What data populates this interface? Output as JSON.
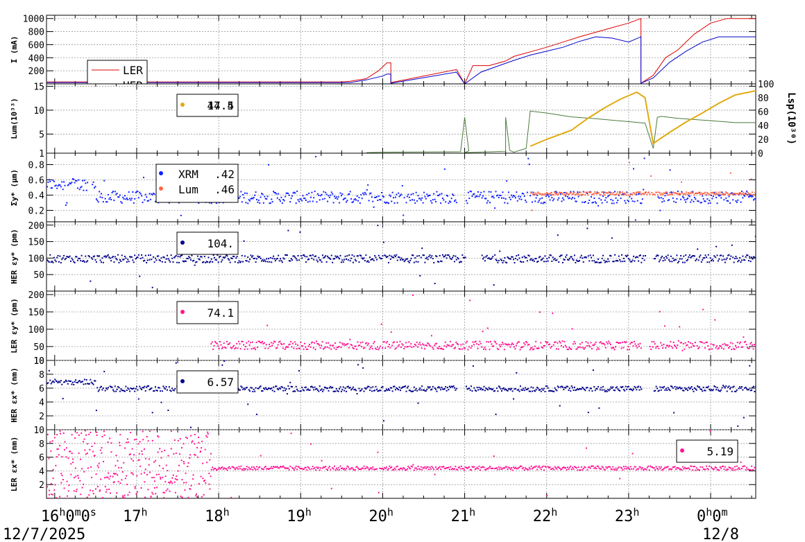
{
  "chart_data": {
    "type": "line",
    "x_axis": {
      "ticks": [
        {
          "main": "16",
          "sup1": "h",
          "mid": "0",
          "sup2": "m",
          "tail": "0",
          "sup3": "s",
          "date": "12/7/2025"
        },
        {
          "main": "17",
          "sup1": "h"
        },
        {
          "main": "18",
          "sup1": "h"
        },
        {
          "main": "19",
          "sup1": "h"
        },
        {
          "main": "20",
          "sup1": "h"
        },
        {
          "main": "21",
          "sup1": "h"
        },
        {
          "main": "22",
          "sup1": "h"
        },
        {
          "main": "23",
          "sup1": "h"
        },
        {
          "main": "0",
          "sup1": "h",
          "mid": "0",
          "sup2": "m",
          "date": "12/8"
        }
      ],
      "hour_positions": [
        0,
        1,
        2,
        3,
        4,
        5,
        6,
        7,
        8
      ],
      "range": [
        -0.1,
        8.55
      ]
    },
    "panels": [
      {
        "id": "current",
        "ylabel": "I (mA)",
        "ylim": [
          0,
          1050
        ],
        "yticks": [
          "1000",
          "800",
          "600",
          "400",
          "200"
        ],
        "ytick_values": [
          1000,
          800,
          600,
          400,
          200
        ],
        "series": [
          {
            "name": "LER",
            "color": "#dd0000",
            "kind": "line",
            "x": [
              -0.1,
              3.5,
              3.6,
              3.8,
              3.95,
              4.05,
              4.1,
              4.1,
              4.9,
              5.0,
              5.0,
              5.1,
              5.3,
              5.5,
              5.6,
              5.8,
              6.0,
              6.2,
              6.4,
              6.6,
              6.8,
              7.0,
              7.15,
              7.15,
              7.3,
              7.45,
              7.6,
              7.8,
              8.0,
              8.2,
              8.55
            ],
            "y": [
              30,
              30,
              40,
              80,
              200,
              320,
              320,
              20,
              220,
              0,
              0,
              280,
              280,
              350,
              420,
              490,
              560,
              640,
              720,
              790,
              860,
              930,
              1000,
              10,
              130,
              400,
              520,
              760,
              930,
              1000,
              1000
            ]
          },
          {
            "name": "HER",
            "color": "#0000cc",
            "kind": "line",
            "x": [
              -0.1,
              3.6,
              3.8,
              4.0,
              4.05,
              4.1,
              4.1,
              4.9,
              5.0,
              5.0,
              5.2,
              5.4,
              5.6,
              5.8,
              6.0,
              6.2,
              6.4,
              6.6,
              6.8,
              7.0,
              7.15,
              7.15,
              7.3,
              7.5,
              7.7,
              7.9,
              8.1,
              8.3,
              8.55
            ],
            "y": [
              20,
              20,
              60,
              120,
              150,
              150,
              10,
              180,
              0,
              0,
              180,
              270,
              360,
              440,
              500,
              560,
              650,
              720,
              700,
              640,
              720,
              10,
              90,
              330,
              500,
              640,
              720,
              720,
              720
            ]
          }
        ],
        "legend": [
          {
            "label": "LER",
            "color": "#dd0000"
          },
          {
            "label": "HER",
            "color": "#0000cc"
          }
        ]
      },
      {
        "id": "luminosity",
        "ylabel": "Lum(10³³)",
        "ylim": [
          1,
          15.5
        ],
        "yticks": [
          "15",
          "10",
          "5",
          "1"
        ],
        "ytick_values": [
          15,
          10,
          5,
          1
        ],
        "right_axis": {
          "label": "Lsp(10³⁰)",
          "ticks": [
            "100",
            "80",
            "60",
            "40",
            "20",
            "0"
          ],
          "tick_values": [
            100,
            80,
            60,
            40,
            20,
            0
          ],
          "range": [
            0,
            100
          ]
        },
        "series": [
          {
            "name": "Lum",
            "color": "#4a7a3a",
            "kind": "line",
            "x": [
              3.8,
              4.0,
              4.95,
              5.0,
              5.05,
              5.0,
              5.5,
              5.5,
              5.55,
              5.6,
              5.75,
              5.8,
              6.0,
              6.3,
              6.6,
              7.0,
              7.2,
              7.3,
              7.35,
              7.4,
              7.6,
              8.0,
              8.3,
              8.55
            ],
            "y": [
              1.1,
              1.2,
              1.3,
              8.5,
              1.5,
              1.1,
              1.4,
              8.5,
              1.6,
              1.2,
              2,
              9.8,
              9.4,
              8.6,
              8.2,
              7.6,
              7.3,
              2,
              8.5,
              8.7,
              8.3,
              7.8,
              7.4,
              7.4
            ]
          },
          {
            "name": "Lsp",
            "color": "#e0aa10",
            "kind": "line",
            "axis": "right",
            "x": [
              5.8,
              6.0,
              6.3,
              6.5,
              6.7,
              6.9,
              7.1,
              7.2,
              7.3,
              7.5,
              7.7,
              7.9,
              8.1,
              8.3,
              8.55
            ],
            "y": [
              10,
              20,
              33,
              50,
              65,
              78,
              88,
              80,
              14,
              30,
              45,
              58,
              72,
              84,
              90
            ]
          }
        ],
        "legend": [
          {
            "label": "17.5",
            "color": "#e0aa10"
          }
        ],
        "legend_overlap": "44.4"
      },
      {
        "id": "sigma",
        "ylabel": "Σy* (μm)",
        "ylim": [
          0.05,
          0.95
        ],
        "yticks": [
          "0.8",
          "0.6",
          "0.4",
          "0.2"
        ],
        "ytick_values": [
          0.8,
          0.6,
          0.4,
          0.2
        ],
        "series": [
          {
            "name": "XRM",
            "color": "#1020ff",
            "kind": "scatter",
            "base": 0.38,
            "noise": 0.08,
            "breaks": [
              [
                0.4,
                0.45
              ],
              [
                4.9,
                5.0
              ],
              [
                7.2,
                7.35
              ]
            ],
            "start_level": 0.55
          },
          {
            "name": "Lum",
            "color": "#ff6644",
            "kind": "scatter",
            "base": 0.43,
            "noise": 0.02,
            "start": 5.8
          }
        ],
        "legend": [
          {
            "label": "XRM",
            "value": ".42",
            "color": "#1020ff"
          },
          {
            "label": "Lum",
            "value": ".46",
            "color": "#ff6644"
          }
        ]
      },
      {
        "id": "her_ey",
        "ylabel": "HER εy* (pm)",
        "ylim": [
          0,
          210
        ],
        "yticks": [
          "200",
          "150",
          "100",
          "50"
        ],
        "ytick_values": [
          200,
          150,
          100,
          50
        ],
        "series": [
          {
            "name": "HER εy",
            "color": "#00008a",
            "kind": "scatter",
            "base": 100,
            "noise": 12,
            "breaks": [
              [
                5.0,
                5.2
              ],
              [
                7.2,
                7.3
              ]
            ]
          }
        ],
        "legend": [
          {
            "label": "104.",
            "color": "#00008a"
          }
        ]
      },
      {
        "id": "ler_ey",
        "ylabel": "LER εy* (pm)",
        "ylim": [
          10,
          210
        ],
        "yticks": [
          "200",
          "150",
          "100",
          "50",
          "10"
        ],
        "ytick_values": [
          200,
          150,
          100,
          50,
          10
        ],
        "series": [
          {
            "name": "LER εy",
            "color": "#ff1493",
            "kind": "scatter",
            "base": 55,
            "noise": 12,
            "start": 1.9,
            "breaks": [
              [
                7.15,
                7.25
              ]
            ]
          }
        ],
        "legend": [
          {
            "label": "74.1",
            "color": "#ff1493"
          }
        ]
      },
      {
        "id": "her_ex",
        "ylabel": "HER εx* (nm)",
        "ylim": [
          0,
          10
        ],
        "yticks": [
          "10",
          "8",
          "6",
          "4",
          "2"
        ],
        "ytick_values": [
          10,
          8,
          6,
          4,
          2
        ],
        "series": [
          {
            "name": "HER εx",
            "color": "#00008a",
            "kind": "scatter",
            "base": 6.0,
            "noise": 0.4,
            "start_level": 7.0,
            "breaks": [
              [
                4.9,
                5.0
              ],
              [
                7.15,
                7.3
              ]
            ]
          }
        ],
        "legend": [
          {
            "label": "6.57",
            "color": "#00008a"
          }
        ]
      },
      {
        "id": "ler_ex",
        "ylabel": "LER εx* (nm)",
        "ylim": [
          0,
          10
        ],
        "yticks": [
          "10",
          "8",
          "6",
          "4",
          "2"
        ],
        "ytick_values": [
          10,
          8,
          6,
          4,
          2
        ],
        "series": [
          {
            "name": "LER εx",
            "color": "#ff1493",
            "kind": "scatter",
            "base": 4.5,
            "noise": 0.3,
            "scatter_until": 1.9
          }
        ],
        "legend": [
          {
            "label": "5.19",
            "color": "#ff1493"
          }
        ]
      }
    ]
  }
}
